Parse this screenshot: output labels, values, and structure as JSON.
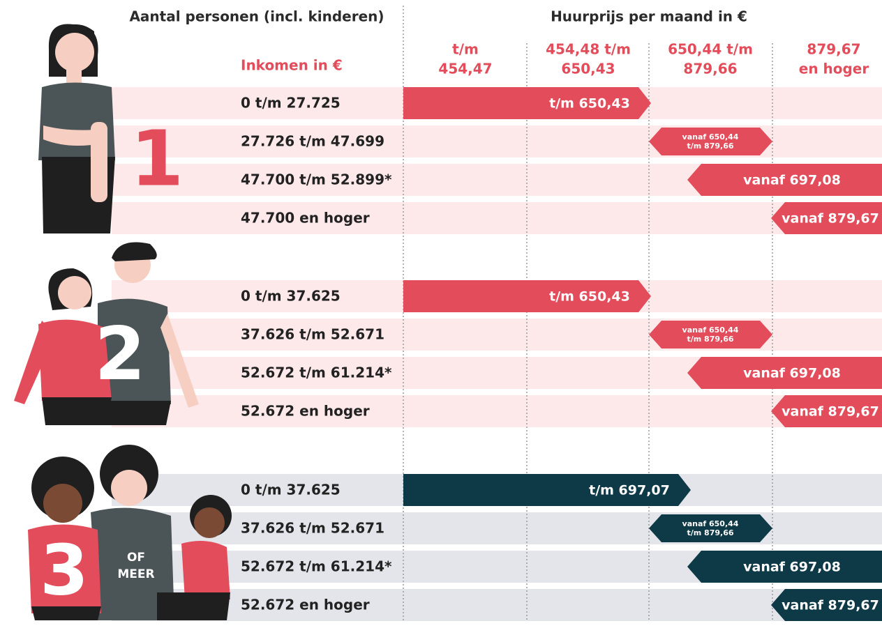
{
  "header": {
    "persons": "Aantal personen (incl. kinderen)",
    "price": "Huurprijs per maand in €",
    "income": "Inkomen in €",
    "price_columns": [
      [
        "t/m",
        "454,47"
      ],
      [
        "454,48 t/m",
        "650,43"
      ],
      [
        "650,44 t/m",
        "879,66"
      ],
      [
        "879,67",
        "en hoger"
      ]
    ]
  },
  "groups": [
    {
      "number": "1",
      "rows": [
        {
          "income": "0 t/m 27.725",
          "bar": [
            "t/m 650,43"
          ]
        },
        {
          "income": "27.726 t/m 47.699",
          "bar": [
            "vanaf 650,44",
            "t/m 879,66"
          ]
        },
        {
          "income": "47.700 t/m 52.899*",
          "bar": [
            "vanaf 697,08"
          ]
        },
        {
          "income": "47.700 en hoger",
          "bar": [
            "vanaf 879,67"
          ]
        }
      ]
    },
    {
      "number": "2",
      "rows": [
        {
          "income": "0 t/m 37.625",
          "bar": [
            "t/m 650,43"
          ]
        },
        {
          "income": "37.626 t/m 52.671",
          "bar": [
            "vanaf 650,44",
            "t/m 879,66"
          ]
        },
        {
          "income": "52.672 t/m 61.214*",
          "bar": [
            "vanaf 697,08"
          ]
        },
        {
          "income": "52.672 en hoger",
          "bar": [
            "vanaf 879,67"
          ]
        }
      ]
    },
    {
      "number": "3",
      "note": [
        "OF",
        "MEER"
      ],
      "rows": [
        {
          "income": "0 t/m 37.625",
          "bar": [
            "t/m 697,07"
          ]
        },
        {
          "income": "37.626 t/m 52.671",
          "bar": [
            "vanaf 650,44",
            "t/m 879,66"
          ]
        },
        {
          "income": "52.672 t/m 61.214*",
          "bar": [
            "vanaf 697,08"
          ]
        },
        {
          "income": "52.672 en hoger",
          "bar": [
            "vanaf 879,67"
          ]
        }
      ]
    }
  ]
}
